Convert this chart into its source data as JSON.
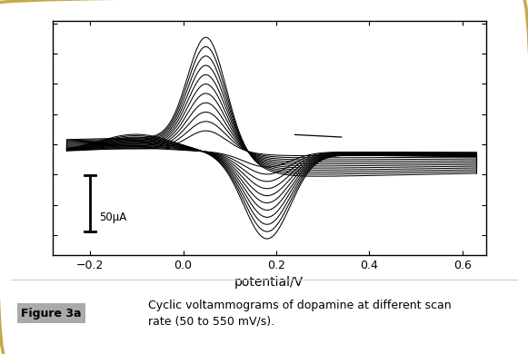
{
  "xlabel": "potential/V",
  "xlim": [
    -0.28,
    0.65
  ],
  "ylim": [
    -1.0,
    1.0
  ],
  "xticks": [
    -0.2,
    0.0,
    0.2,
    0.4,
    0.6
  ],
  "n_curves": 11,
  "scale_bar_label": "50μA",
  "figure_label": "Figure 3a",
  "caption": "Cyclic voltammograms of dopamine at different scan\nrate (50 to 550 mV/s).",
  "bg_color": "#ffffff",
  "border_color": "#c8a84b",
  "curve_color": "#000000",
  "fig_label_bg": "#aaaaaa",
  "box_color": "#000000"
}
